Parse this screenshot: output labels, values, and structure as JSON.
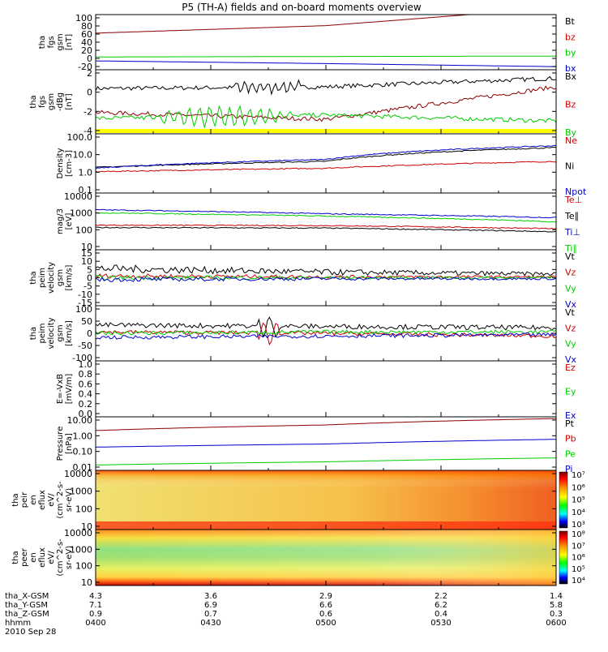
{
  "title": "P5 (TH-A) fields and on-board moments overview",
  "chart_data": [
    {
      "type": "line",
      "ylabel": [
        "tha",
        "fgs",
        "gsm",
        "[nT]"
      ],
      "yticks": [
        "100",
        "80",
        "60",
        "40",
        "20",
        "0",
        "-20"
      ],
      "ylim": [
        -25,
        100
      ],
      "legend": [
        {
          "label": "Bt",
          "color": "#000000"
        },
        {
          "label": "bz",
          "color": "#cc0000"
        },
        {
          "label": "by",
          "color": "#00cc00"
        },
        {
          "label": "bx",
          "color": "#0000cc"
        }
      ],
      "series": [
        {
          "name": "bz",
          "color": "#8b0000",
          "x": [
            0,
            0.5,
            1
          ],
          "values": [
            58,
            75,
            115
          ]
        },
        {
          "name": "by",
          "color": "#00cc00",
          "x": [
            0,
            0.5,
            1
          ],
          "values": [
            4,
            5,
            6
          ]
        },
        {
          "name": "bx",
          "color": "#0000cc",
          "x": [
            0,
            0.5,
            1
          ],
          "values": [
            -5,
            -11,
            -18
          ]
        }
      ]
    },
    {
      "type": "line",
      "ylabel": [
        "tha",
        "fgs",
        "gsm",
        "-dBg",
        "[nT]"
      ],
      "yticks": [
        "2",
        "0",
        "-2",
        "-4"
      ],
      "ylim": [
        -5,
        2.5
      ],
      "legend": [
        {
          "label": "Bx",
          "color": "#000000"
        },
        {
          "label": "Bz",
          "color": "#cc0000"
        },
        {
          "label": "By",
          "color": "#00cc00"
        }
      ],
      "series": [
        {
          "name": "Bx",
          "color": "#000000",
          "x": [
            0,
            0.5,
            1
          ],
          "values": [
            0.3,
            0.5,
            1.5
          ]
        },
        {
          "name": "Bz",
          "color": "#8b0000",
          "x": [
            0,
            0.5,
            1
          ],
          "values": [
            -2.5,
            -3.3,
            0.5
          ]
        },
        {
          "name": "By",
          "color": "#00cc00",
          "x": [
            0,
            0.5,
            1
          ],
          "values": [
            -3.2,
            -2.8,
            -3.5
          ]
        }
      ]
    },
    {
      "type": "line",
      "ylabel": [
        "Density",
        "[cm-3]"
      ],
      "yticks": [
        "100.0",
        "10.0",
        "1.0",
        "0.1"
      ],
      "ylim": [
        0.1,
        100
      ],
      "log": true,
      "legend": [
        {
          "label": "Ne",
          "color": "#cc0000"
        },
        {
          "label": "Ni",
          "color": "#000000"
        },
        {
          "label": "Npot",
          "color": "#0000cc"
        }
      ],
      "series": [
        {
          "name": "Ne",
          "color": "#cc0000",
          "x": [
            0,
            0.5,
            1
          ],
          "values": [
            1.2,
            1.8,
            4
          ]
        },
        {
          "name": "Ni",
          "color": "#000000",
          "x": [
            0,
            0.5,
            1
          ],
          "values": [
            2,
            4,
            20
          ]
        },
        {
          "name": "Npot",
          "color": "#0000cc",
          "x": [
            0,
            0.5,
            1
          ],
          "values": [
            1.8,
            5,
            25
          ]
        }
      ]
    },
    {
      "type": "line",
      "ylabel": [
        "mag/3",
        "[eV]"
      ],
      "yticks": [
        "10000",
        "1000",
        "100",
        "10"
      ],
      "ylim": [
        10,
        10000
      ],
      "log": true,
      "legend": [
        {
          "label": "Te⊥",
          "color": "#cc0000"
        },
        {
          "label": "Te∥",
          "color": "#000000"
        },
        {
          "label": "Ti⊥",
          "color": "#0000cc"
        },
        {
          "label": "Ti∥",
          "color": "#00cc00"
        }
      ],
      "series": [
        {
          "name": "Te⊥",
          "color": "#cc0000",
          "x": [
            0,
            0.5,
            1
          ],
          "values": [
            200,
            190,
            130
          ]
        },
        {
          "name": "Te∥",
          "color": "#000000",
          "x": [
            0,
            0.5,
            1
          ],
          "values": [
            150,
            140,
            90
          ]
        },
        {
          "name": "Ti⊥",
          "color": "#0000cc",
          "x": [
            0,
            0.5,
            1
          ],
          "values": [
            1300,
            800,
            500
          ]
        },
        {
          "name": "Ti∥",
          "color": "#00cc00",
          "x": [
            0,
            0.5,
            1
          ],
          "values": [
            900,
            600,
            300
          ]
        }
      ]
    },
    {
      "type": "line",
      "ylabel": [
        "tha",
        "peim",
        "velocity",
        "gsm",
        "[km/s]"
      ],
      "yticks": [
        "15",
        "10",
        "5",
        "0",
        "-5",
        "-10",
        "-15"
      ],
      "ylim": [
        -15,
        15
      ],
      "legend": [
        {
          "label": "Vt",
          "color": "#000000"
        },
        {
          "label": "Vz",
          "color": "#cc0000"
        },
        {
          "label": "Vy",
          "color": "#00cc00"
        },
        {
          "label": "Vx",
          "color": "#0000cc"
        }
      ],
      "series": [
        {
          "name": "Vt",
          "color": "#000000",
          "x": [
            0,
            0.5,
            1
          ],
          "values": [
            5,
            3,
            2
          ]
        },
        {
          "name": "Vz",
          "color": "#cc0000",
          "x": [
            0,
            0.5,
            1
          ],
          "values": [
            1,
            0.5,
            0.5
          ]
        },
        {
          "name": "Vy",
          "color": "#00cc00",
          "x": [
            0,
            0.5,
            1
          ],
          "values": [
            0,
            0,
            0
          ]
        },
        {
          "name": "Vx",
          "color": "#0000cc",
          "x": [
            0,
            0.5,
            1
          ],
          "values": [
            -1,
            -0.5,
            -0.5
          ]
        }
      ]
    },
    {
      "type": "line",
      "ylabel": [
        "tha",
        "peim",
        "velocity",
        "gsm",
        "[km/s]"
      ],
      "yticks": [
        "100",
        "50",
        "0",
        "-50",
        "-100"
      ],
      "ylim": [
        -100,
        100
      ],
      "legend": [
        {
          "label": "Vt",
          "color": "#000000"
        },
        {
          "label": "Vz",
          "color": "#cc0000"
        },
        {
          "label": "Vy",
          "color": "#00cc00"
        },
        {
          "label": "Vx",
          "color": "#0000cc"
        }
      ],
      "series": [
        {
          "name": "Vt",
          "color": "#000000",
          "x": [
            0,
            0.5,
            1
          ],
          "values": [
            30,
            25,
            20
          ]
        },
        {
          "name": "Vz",
          "color": "#cc0000",
          "x": [
            0,
            0.5,
            1
          ],
          "values": [
            5,
            0,
            -10
          ]
        },
        {
          "name": "Vy",
          "color": "#00cc00",
          "x": [
            0,
            0.5,
            1
          ],
          "values": [
            0,
            5,
            5
          ]
        },
        {
          "name": "Vx",
          "color": "#0000cc",
          "x": [
            0,
            0.5,
            1
          ],
          "values": [
            -15,
            -10,
            -5
          ]
        }
      ]
    },
    {
      "type": "line",
      "ylabel": [
        "E=-VxB",
        "[mV/m]"
      ],
      "yticks": [
        "1.0",
        "0.8",
        "0.6",
        "0.4",
        "0.2",
        "0.0"
      ],
      "ylim": [
        0,
        1
      ],
      "legend": [
        {
          "label": "Ez",
          "color": "#cc0000"
        },
        {
          "label": "Ey",
          "color": "#00cc00"
        },
        {
          "label": "Ex",
          "color": "#0000cc"
        }
      ],
      "series": []
    },
    {
      "type": "line",
      "ylabel": [
        "Pressure",
        "[nPa]"
      ],
      "yticks": [
        "10.00",
        "1.00",
        "0.10",
        "0.01"
      ],
      "ylim": [
        0.01,
        10
      ],
      "log": true,
      "legend": [
        {
          "label": "Pt",
          "color": "#000000"
        },
        {
          "label": "Pb",
          "color": "#cc0000"
        },
        {
          "label": "Pe",
          "color": "#00cc00"
        },
        {
          "label": "Pi",
          "color": "#0000cc"
        }
      ],
      "series": [
        {
          "name": "Pb",
          "color": "#8b0000",
          "x": [
            0,
            0.5,
            1
          ],
          "values": [
            1.7,
            3.5,
            8
          ]
        },
        {
          "name": "Pi",
          "color": "#0000cc",
          "x": [
            0,
            0.5,
            1
          ],
          "values": [
            0.2,
            0.3,
            0.55
          ]
        },
        {
          "name": "Pe",
          "color": "#00cc00",
          "x": [
            0,
            0.5,
            1
          ],
          "values": [
            0.02,
            0.03,
            0.05
          ]
        }
      ]
    },
    {
      "type": "heatmap",
      "ylabel": [
        "tha",
        "peir",
        "en",
        "eflux",
        "eV/",
        "(cm^2-s-",
        "sr-eV)"
      ],
      "yticks": [
        "10000",
        "1000",
        "100",
        "10"
      ],
      "colorbar": [
        "10⁷",
        "10⁶",
        "10⁵",
        "10⁴",
        "10³"
      ]
    },
    {
      "type": "heatmap",
      "ylabel": [
        "tha",
        "peer",
        "en",
        "eflux",
        "eV/",
        "(cm^2-s-",
        "sr-eV)"
      ],
      "yticks": [
        "10000",
        "1000",
        "100",
        "10"
      ],
      "colorbar": [
        "10⁸",
        "10⁷",
        "10⁶",
        "10⁵",
        "10⁴"
      ]
    }
  ],
  "xaxis": {
    "rows": [
      {
        "label": "tha_X-GSM",
        "values": [
          "4.3",
          "3.6",
          "2.9",
          "2.2",
          "1.4"
        ]
      },
      {
        "label": "tha_Y-GSM",
        "values": [
          "7.1",
          "6.9",
          "6.6",
          "6.2",
          "5.8"
        ]
      },
      {
        "label": "tha_Z-GSM",
        "values": [
          "0.9",
          "0.7",
          "0.6",
          "0.4",
          "0.3"
        ]
      },
      {
        "label": "hhmm",
        "values": [
          "0400",
          "0430",
          "0500",
          "0530",
          "0600"
        ]
      }
    ],
    "date": "2010 Sep 28"
  }
}
